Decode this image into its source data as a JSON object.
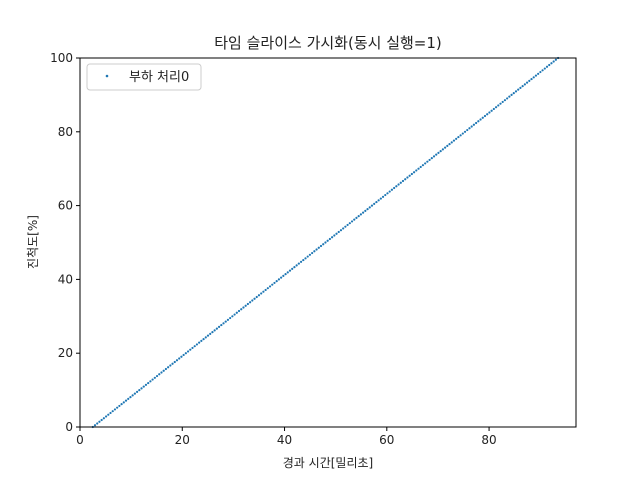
{
  "chart_data": {
    "type": "scatter",
    "title": "타임 슬라이스 가시화(동시 실행=1)",
    "xlabel": "경과 시간[밀리초]",
    "ylabel": "진척도[%]",
    "xlim": [
      0,
      97
    ],
    "ylim": [
      0,
      100
    ],
    "xticks": [
      0,
      20,
      40,
      60,
      80
    ],
    "yticks": [
      0,
      20,
      40,
      60,
      80,
      100
    ],
    "grid": false,
    "legend_position": "top-left",
    "series": [
      {
        "name": "부하 처리0",
        "color": "#1f77b4",
        "marker": "dot",
        "x_start": 2.5,
        "x_end": 93.5,
        "y_start": 0,
        "y_end": 100
      }
    ]
  }
}
